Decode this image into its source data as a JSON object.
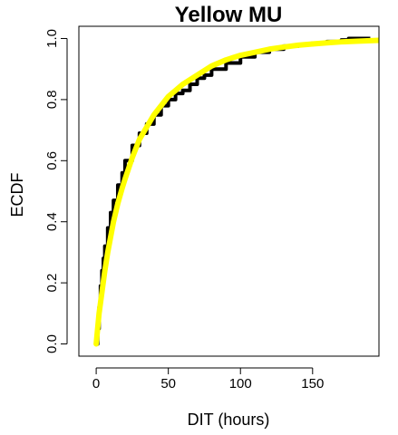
{
  "chart_data": {
    "type": "line",
    "title": "Yellow MU",
    "xlabel": "DIT (hours)",
    "ylabel": "ECDF",
    "xlim": [
      -12,
      196
    ],
    "ylim": [
      -0.04,
      1.04
    ],
    "x_ticks": [
      0,
      50,
      100,
      150
    ],
    "y_ticks": [
      0.0,
      0.2,
      0.4,
      0.6,
      0.8,
      1.0
    ],
    "x_tick_labels": [
      "0",
      "50",
      "100",
      "150"
    ],
    "y_tick_labels": [
      "0.0",
      "0.2",
      "0.4",
      "0.6",
      "0.8",
      "1.0"
    ],
    "grid": false,
    "legend": "none",
    "series": [
      {
        "color": "#000000",
        "style": "empirical step",
        "x": [
          0,
          1,
          2,
          3,
          4,
          5,
          6,
          8,
          10,
          12,
          15,
          18,
          20,
          25,
          30,
          35,
          40,
          45,
          50,
          55,
          60,
          65,
          70,
          75,
          80,
          90,
          100,
          110,
          120,
          130,
          140,
          150,
          160,
          170,
          175,
          180,
          185,
          190
        ],
        "y": [
          0.0,
          0.05,
          0.12,
          0.19,
          0.24,
          0.28,
          0.32,
          0.38,
          0.43,
          0.47,
          0.52,
          0.56,
          0.6,
          0.65,
          0.69,
          0.72,
          0.75,
          0.78,
          0.8,
          0.82,
          0.83,
          0.85,
          0.87,
          0.88,
          0.9,
          0.92,
          0.94,
          0.955,
          0.965,
          0.975,
          0.98,
          0.985,
          0.99,
          0.995,
          1.0,
          1.0,
          1.0,
          1.0
        ]
      },
      {
        "color": "#FFFF00",
        "style": "fitted curve",
        "x": [
          0,
          2,
          4,
          6,
          8,
          10,
          12,
          15,
          18,
          20,
          25,
          30,
          35,
          40,
          45,
          50,
          55,
          60,
          70,
          80,
          90,
          100,
          110,
          120,
          130,
          140,
          150,
          160,
          170,
          180,
          196
        ],
        "y": [
          0.0,
          0.1,
          0.17,
          0.24,
          0.3,
          0.35,
          0.4,
          0.46,
          0.51,
          0.54,
          0.61,
          0.67,
          0.71,
          0.75,
          0.78,
          0.81,
          0.83,
          0.85,
          0.88,
          0.91,
          0.93,
          0.945,
          0.955,
          0.965,
          0.972,
          0.978,
          0.982,
          0.986,
          0.989,
          0.991,
          0.994
        ]
      }
    ]
  }
}
